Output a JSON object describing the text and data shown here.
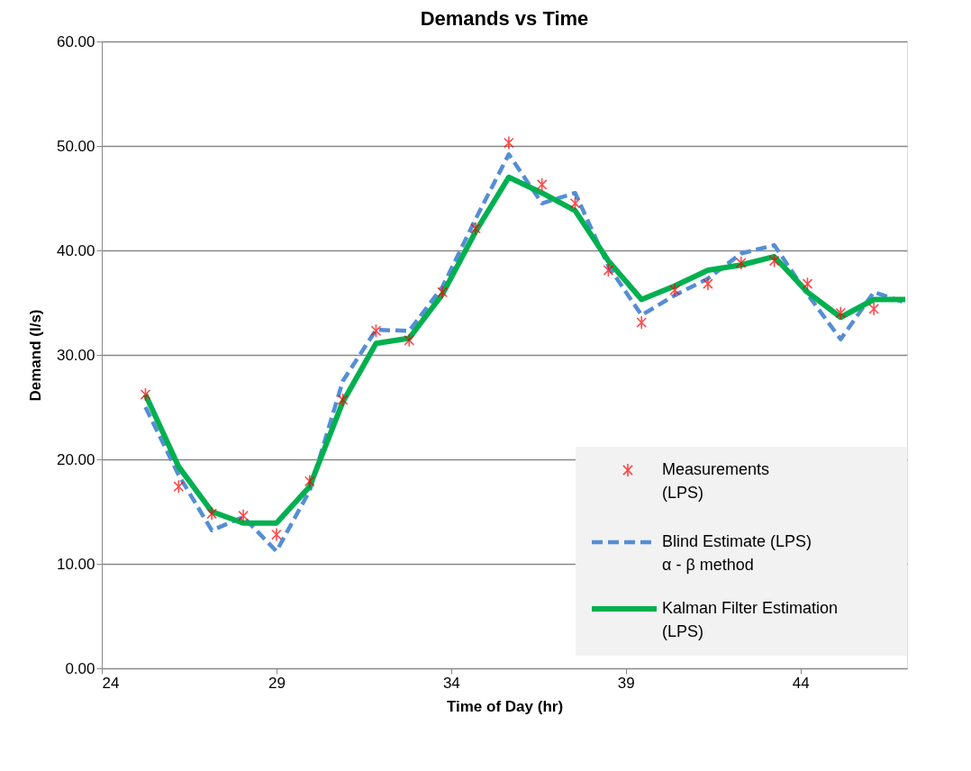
{
  "chart_data": {
    "type": "line",
    "title": "Demands vs Time",
    "xlabel": "Time of Day (hr)",
    "ylabel": "Demand (l/s)",
    "x": [
      25.25,
      26.2,
      27.15,
      28.05,
      29.0,
      29.95,
      30.9,
      31.85,
      32.8,
      33.75,
      34.7,
      35.65,
      36.6,
      37.55,
      38.5,
      39.45,
      40.4,
      41.35,
      42.3,
      43.25,
      44.2,
      45.15,
      46.1,
      47.0
    ],
    "series": [
      {
        "name": "Measurements\n(LPS)",
        "type": "scatter",
        "marker": "cross",
        "color": "#ff0000",
        "values": [
          26.2,
          17.4,
          14.8,
          14.6,
          12.8,
          17.9,
          25.7,
          32.3,
          31.4,
          36.0,
          42.1,
          50.3,
          46.3,
          44.5,
          38.1,
          33.1,
          36.2,
          36.8,
          38.8,
          39.0,
          36.8,
          34.0,
          34.4,
          null
        ]
      },
      {
        "name": "Blind Estimate  (LPS)\nα - β method",
        "line_style": "dashed",
        "color": "#558ed5",
        "values": [
          25.0,
          18.5,
          13.2,
          14.5,
          11.2,
          17.0,
          27.5,
          32.4,
          32.3,
          36.5,
          43.0,
          49.2,
          44.5,
          45.5,
          38.5,
          33.8,
          35.7,
          37.3,
          39.7,
          40.5,
          35.8,
          31.5,
          36.0,
          35.0
        ]
      },
      {
        "name": "Kalman Filter Estimation\n(LPS)",
        "line_style": "solid",
        "color": "#00b050",
        "values": [
          26.2,
          19.3,
          15.0,
          13.9,
          13.9,
          17.4,
          25.5,
          31.1,
          31.6,
          35.8,
          41.8,
          47.0,
          45.5,
          43.8,
          39.0,
          35.3,
          36.6,
          38.1,
          38.6,
          39.4,
          36.0,
          33.6,
          35.3,
          35.3
        ]
      }
    ],
    "xlim": [
      24,
      47.05
    ],
    "xticks": [
      24,
      29,
      34,
      39,
      44
    ],
    "ylim": [
      0,
      60
    ],
    "yticks": [
      {
        "value": 0,
        "label": "0.00"
      },
      {
        "value": 10,
        "label": "10.00"
      },
      {
        "value": 20,
        "label": "20.00"
      },
      {
        "value": 30,
        "label": "30.00"
      },
      {
        "value": 40,
        "label": "40.00"
      },
      {
        "value": 50,
        "label": "50.00"
      },
      {
        "value": 60,
        "label": "60.00"
      }
    ],
    "grid": "y",
    "legend": "bottom right"
  }
}
